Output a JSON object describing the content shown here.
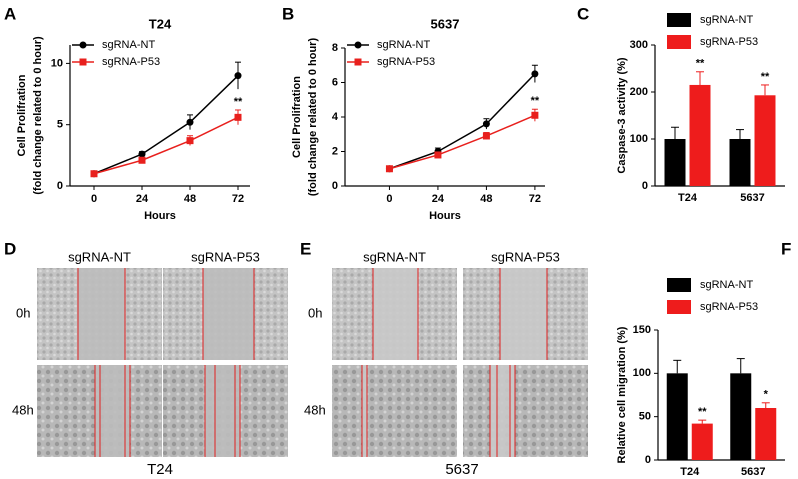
{
  "panel_labels": [
    "A",
    "B",
    "C",
    "D",
    "E",
    "F"
  ],
  "chart_data": [
    {
      "type": "line",
      "title": "T24",
      "xlabel": "Hours",
      "ylabel": [
        "Cell Prolifration",
        "(fold change related to 0 hour)"
      ],
      "x": [
        0,
        24,
        48,
        72
      ],
      "xlim": [
        -12,
        78
      ],
      "xticks": [
        0,
        24,
        48,
        72
      ],
      "ylim": [
        0,
        11.5
      ],
      "yticks": [
        0,
        5,
        10
      ],
      "series": [
        {
          "name": "sgRNA-NT",
          "color": "#000000",
          "marker": "circle",
          "values": [
            1,
            2.6,
            5.2,
            9.0
          ],
          "error": [
            0.1,
            0.2,
            0.6,
            1.1
          ]
        },
        {
          "name": "sgRNA-P53",
          "color": "#e8201d",
          "marker": "square",
          "values": [
            1,
            2.1,
            3.7,
            5.6
          ],
          "error": [
            0.1,
            0.2,
            0.4,
            0.6
          ],
          "significance": [
            null,
            null,
            null,
            "**"
          ]
        }
      ]
    },
    {
      "type": "line",
      "title": "5637",
      "xlabel": "Hours",
      "ylabel": [
        "Cell Prolifration",
        "(fold change related to 0 hour)"
      ],
      "x": [
        0,
        24,
        48,
        72
      ],
      "xlim": [
        -22,
        77
      ],
      "xticks": [
        0,
        24,
        48,
        72
      ],
      "ylim": [
        0,
        8
      ],
      "yticks": [
        0,
        2,
        4,
        6,
        8
      ],
      "series": [
        {
          "name": "sgRNA-NT",
          "color": "#000000",
          "marker": "circle",
          "values": [
            1,
            2.0,
            3.6,
            6.5
          ],
          "error": [
            0.1,
            0.2,
            0.3,
            0.5
          ]
        },
        {
          "name": "sgRNA-P53",
          "color": "#e8201d",
          "marker": "square",
          "values": [
            1,
            1.8,
            2.9,
            4.1
          ],
          "error": [
            0.05,
            0.15,
            0.2,
            0.35
          ],
          "significance": [
            null,
            null,
            null,
            "**"
          ]
        }
      ]
    },
    {
      "type": "bar",
      "ylabel": "Caspase-3 activity (%)",
      "categories": [
        "T24",
        "5637"
      ],
      "ylim": [
        0,
        300
      ],
      "yticks": [
        0,
        100,
        200,
        300
      ],
      "series": [
        {
          "name": "sgRNA-NT",
          "color": "#000000",
          "values": [
            100,
            100
          ],
          "error": [
            25,
            20
          ]
        },
        {
          "name": "sgRNA-P53",
          "color": "#ee1c1c",
          "values": [
            215,
            193
          ],
          "error": [
            28,
            22
          ],
          "significance": [
            "**",
            "**"
          ]
        }
      ]
    },
    {
      "type": "bar",
      "ylabel": "Relative cell migration (%)",
      "categories": [
        "T24",
        "5637"
      ],
      "ylim": [
        0,
        150
      ],
      "yticks": [
        0,
        50,
        100,
        150
      ],
      "series": [
        {
          "name": "sgRNA-NT",
          "color": "#000000",
          "values": [
            100,
            100
          ],
          "error": [
            15,
            17
          ]
        },
        {
          "name": "sgRNA-P53",
          "color": "#ee1c1c",
          "values": [
            42,
            60
          ],
          "error": [
            4,
            6
          ],
          "significance": [
            "**",
            "*"
          ]
        }
      ]
    }
  ],
  "micrographs": [
    {
      "columns": [
        "sgRNA-NT",
        "sgRNA-P53"
      ],
      "rows": [
        "0h",
        "48h"
      ],
      "caption": "T24"
    },
    {
      "columns": [
        "sgRNA-NT",
        "sgRNA-P53"
      ],
      "rows": [
        "0h",
        "48h"
      ],
      "caption": "5637"
    }
  ]
}
